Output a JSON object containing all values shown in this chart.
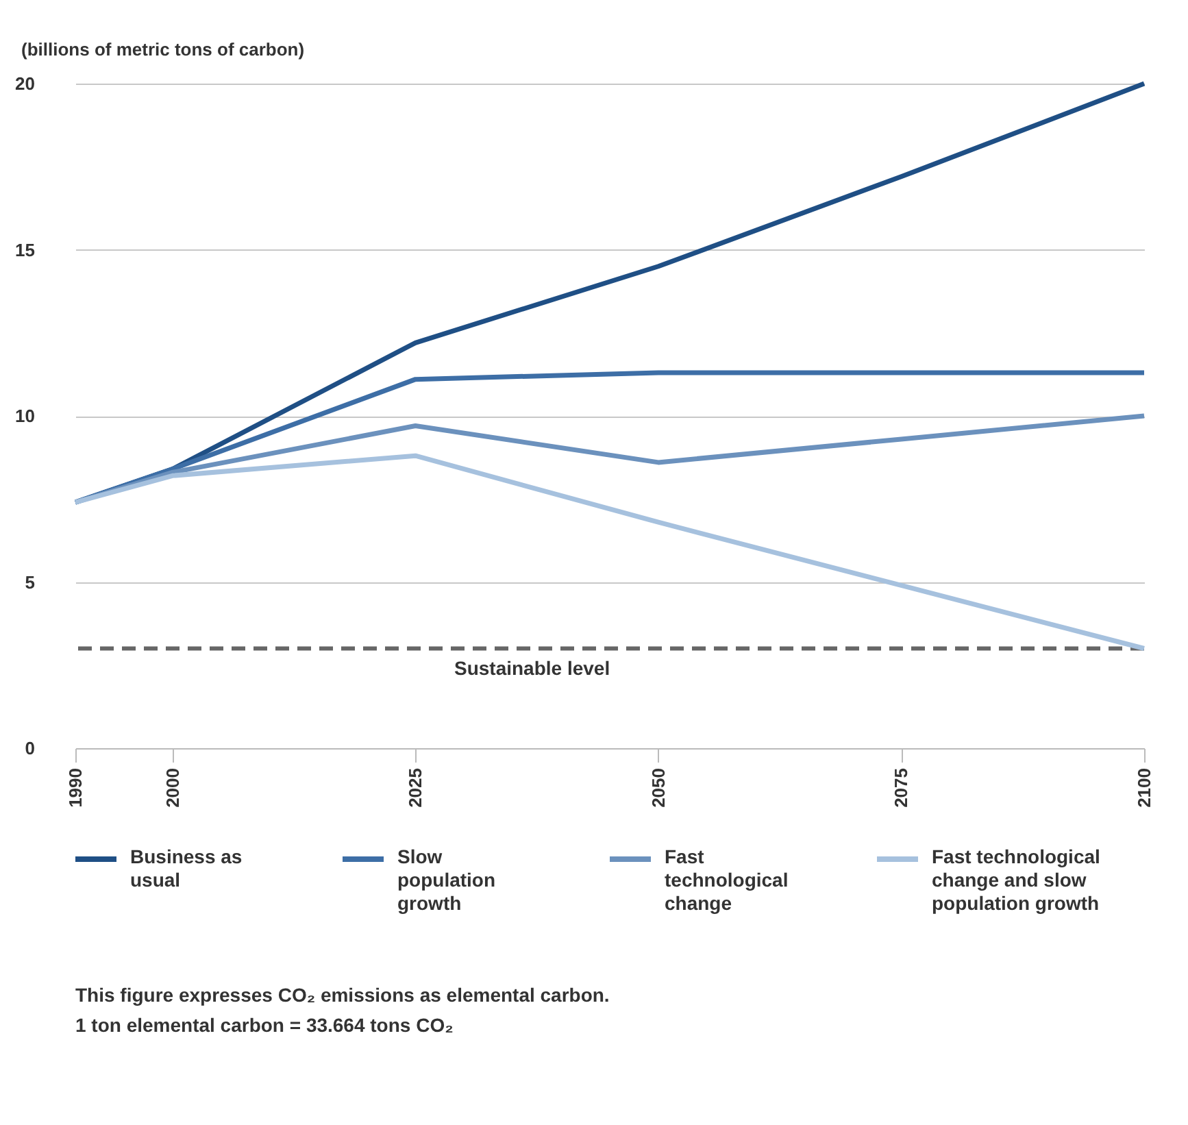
{
  "chart_data": {
    "type": "line",
    "ylabel": "(billions of metric tons of carbon)",
    "x": [
      1990,
      2000,
      2025,
      2050,
      2075,
      2100
    ],
    "series": [
      {
        "name": "Business as usual",
        "color": "#1f4f85",
        "values": [
          7.4,
          8.4,
          12.2,
          14.5,
          17.2,
          20.0
        ]
      },
      {
        "name": "Slow population growth",
        "color": "#3d6ea6",
        "values": [
          7.4,
          8.4,
          11.1,
          11.3,
          11.3,
          11.3
        ]
      },
      {
        "name": "Fast technological change",
        "color": "#6b91bd",
        "values": [
          7.4,
          8.3,
          9.7,
          8.6,
          9.3,
          10.0
        ]
      },
      {
        "name": "Fast technological change and slow population growth",
        "color": "#a6c1de",
        "values": [
          7.4,
          8.2,
          8.8,
          6.8,
          4.9,
          3.0
        ]
      }
    ],
    "xlim": [
      1990,
      2100
    ],
    "xticks": [
      1990,
      2000,
      2025,
      2050,
      2075,
      2100
    ],
    "ylim": [
      0,
      20
    ],
    "yticks": [
      0,
      5,
      10,
      15,
      20
    ],
    "ref_lines": [
      {
        "axis": "y",
        "value": 3,
        "label": "Sustainable level",
        "color": "#666666",
        "line_style": "dashed"
      }
    ],
    "grid": "y",
    "legend": "bottom",
    "marker": "none",
    "line_style": "solid",
    "annotations": [
      "This figure expresses CO₂ emissions as elemental carbon.",
      "1 ton elemental carbon = 33.664 tons CO₂"
    ]
  }
}
